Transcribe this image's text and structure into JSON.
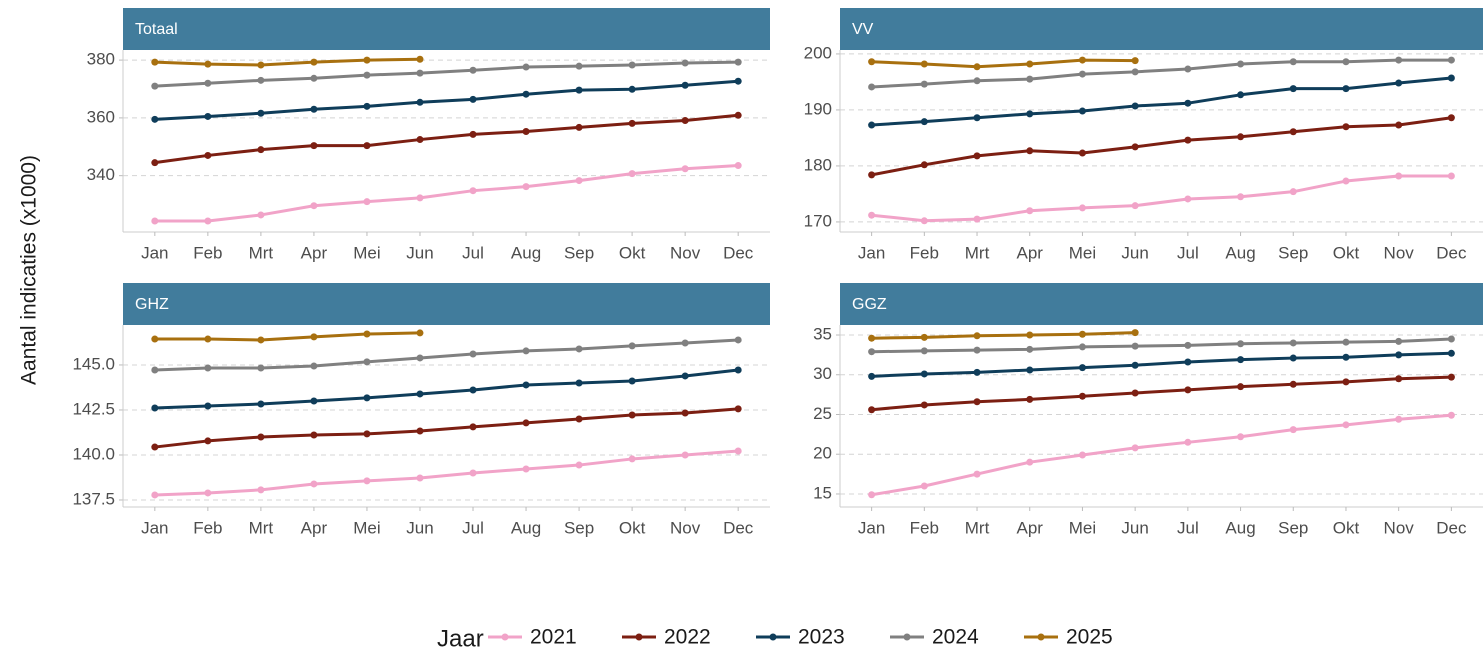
{
  "y_axis_label": "Aantal indicaties (x1000)",
  "legend": {
    "title": "Jaar"
  },
  "chart_data": [
    {
      "type": "line",
      "title": "Totaal",
      "categories": [
        "Jan",
        "Feb",
        "Mrt",
        "Apr",
        "Mei",
        "Jun",
        "Jul",
        "Aug",
        "Sep",
        "Okt",
        "Nov",
        "Dec"
      ],
      "ylim": [
        320.5,
        383.5
      ],
      "yticks": [
        340,
        360,
        380
      ],
      "grid": true,
      "series": [
        {
          "name": "2021",
          "color": "#f1a3c8",
          "values": [
            324.3,
            324.3,
            326.4,
            329.6,
            331,
            332.3,
            334.8,
            336.2,
            338.3,
            340.7,
            342.4,
            343.5
          ]
        },
        {
          "name": "2022",
          "color": "#7c1f12",
          "values": [
            344.5,
            347,
            349,
            350.4,
            350.4,
            352.5,
            354.3,
            355.3,
            356.7,
            358.1,
            359.1,
            360.9
          ]
        },
        {
          "name": "2023",
          "color": "#0f3d5a",
          "values": [
            359.5,
            360.5,
            361.6,
            363,
            364,
            365.4,
            366.4,
            368.2,
            369.6,
            369.9,
            371.3,
            372.7
          ]
        },
        {
          "name": "2024",
          "color": "#808080",
          "values": [
            371,
            372,
            373,
            373.7,
            374.8,
            375.5,
            376.5,
            377.6,
            377.9,
            378.3,
            379,
            379.3
          ]
        },
        {
          "name": "2025",
          "color": "#a8700f",
          "values": [
            379.3,
            378.6,
            378.3,
            379.3,
            380,
            380.3,
            null,
            null,
            null,
            null,
            null,
            null
          ]
        }
      ]
    },
    {
      "type": "line",
      "title": "VV",
      "categories": [
        "Jan",
        "Feb",
        "Mrt",
        "Apr",
        "Mei",
        "Jun",
        "Jul",
        "Aug",
        "Sep",
        "Okt",
        "Nov",
        "Dec"
      ],
      "ylim": [
        168.2,
        200.7
      ],
      "yticks": [
        170,
        180,
        190,
        200
      ],
      "grid": true,
      "series": [
        {
          "name": "2021",
          "color": "#f1a3c8",
          "values": [
            171.2,
            170.2,
            170.5,
            172,
            172.5,
            172.9,
            174.1,
            174.5,
            175.4,
            177.3,
            178.2,
            178.2
          ]
        },
        {
          "name": "2022",
          "color": "#7c1f12",
          "values": [
            178.4,
            180.2,
            181.8,
            182.7,
            182.3,
            183.4,
            184.6,
            185.2,
            186.1,
            187,
            187.3,
            188.6
          ]
        },
        {
          "name": "2023",
          "color": "#0f3d5a",
          "values": [
            187.3,
            187.9,
            188.6,
            189.3,
            189.8,
            190.7,
            191.2,
            192.7,
            193.8,
            193.8,
            194.8,
            195.7
          ]
        },
        {
          "name": "2024",
          "color": "#808080",
          "values": [
            194.1,
            194.6,
            195.2,
            195.5,
            196.4,
            196.8,
            197.3,
            198.2,
            198.6,
            198.6,
            198.9,
            198.9
          ]
        },
        {
          "name": "2025",
          "color": "#a8700f",
          "values": [
            198.6,
            198.2,
            197.7,
            198.2,
            198.9,
            198.8,
            null,
            null,
            null,
            null,
            null,
            null
          ]
        }
      ]
    },
    {
      "type": "line",
      "title": "GHZ",
      "categories": [
        "Jan",
        "Feb",
        "Mrt",
        "Apr",
        "Mei",
        "Jun",
        "Jul",
        "Aug",
        "Sep",
        "Okt",
        "Nov",
        "Dec"
      ],
      "ylim": [
        137.11,
        147.22
      ],
      "yticks": [
        137.5,
        {
          "value": 140,
          "label": "140.0"
        },
        142.5,
        {
          "value": 145,
          "label": "145.0"
        }
      ],
      "grid": true,
      "series": [
        {
          "name": "2021",
          "color": "#f1a3c8",
          "values": [
            137.78,
            137.89,
            138.06,
            138.39,
            138.56,
            138.72,
            139,
            139.22,
            139.44,
            139.78,
            140,
            140.22
          ]
        },
        {
          "name": "2022",
          "color": "#7c1f12",
          "values": [
            140.44,
            140.78,
            141,
            141.11,
            141.17,
            141.33,
            141.56,
            141.78,
            142,
            142.22,
            142.33,
            142.56
          ]
        },
        {
          "name": "2023",
          "color": "#0f3d5a",
          "values": [
            142.61,
            142.72,
            142.83,
            143,
            143.17,
            143.39,
            143.61,
            143.89,
            144,
            144.11,
            144.39,
            144.72
          ]
        },
        {
          "name": "2024",
          "color": "#808080",
          "values": [
            144.72,
            144.83,
            144.83,
            144.94,
            145.17,
            145.39,
            145.61,
            145.78,
            145.89,
            146.06,
            146.22,
            146.39
          ]
        },
        {
          "name": "2025",
          "color": "#a8700f",
          "values": [
            146.44,
            146.44,
            146.39,
            146.56,
            146.72,
            146.78,
            null,
            null,
            null,
            null,
            null,
            null
          ]
        }
      ]
    },
    {
      "type": "line",
      "title": "GGZ",
      "categories": [
        "Jan",
        "Feb",
        "Mrt",
        "Apr",
        "Mei",
        "Jun",
        "Jul",
        "Aug",
        "Sep",
        "Okt",
        "Nov",
        "Dec"
      ],
      "ylim": [
        13.36,
        36.26
      ],
      "yticks": [
        15,
        20,
        25,
        30,
        35
      ],
      "grid": true,
      "series": [
        {
          "name": "2021",
          "color": "#f1a3c8",
          "values": [
            14.9,
            16,
            17.5,
            19,
            19.9,
            20.8,
            21.5,
            22.2,
            23.1,
            23.7,
            24.4,
            24.9
          ]
        },
        {
          "name": "2022",
          "color": "#7c1f12",
          "values": [
            25.6,
            26.2,
            26.6,
            26.9,
            27.3,
            27.7,
            28.1,
            28.5,
            28.8,
            29.1,
            29.5,
            29.7
          ]
        },
        {
          "name": "2023",
          "color": "#0f3d5a",
          "values": [
            29.8,
            30.1,
            30.3,
            30.6,
            30.9,
            31.2,
            31.6,
            31.9,
            32.1,
            32.2,
            32.5,
            32.7
          ]
        },
        {
          "name": "2024",
          "color": "#808080",
          "values": [
            32.9,
            33,
            33.1,
            33.2,
            33.5,
            33.6,
            33.7,
            33.9,
            34,
            34.1,
            34.2,
            34.5
          ]
        },
        {
          "name": "2025",
          "color": "#a8700f",
          "values": [
            34.6,
            34.7,
            34.9,
            35,
            35.1,
            35.3,
            null,
            null,
            null,
            null,
            null,
            null
          ]
        }
      ]
    }
  ]
}
